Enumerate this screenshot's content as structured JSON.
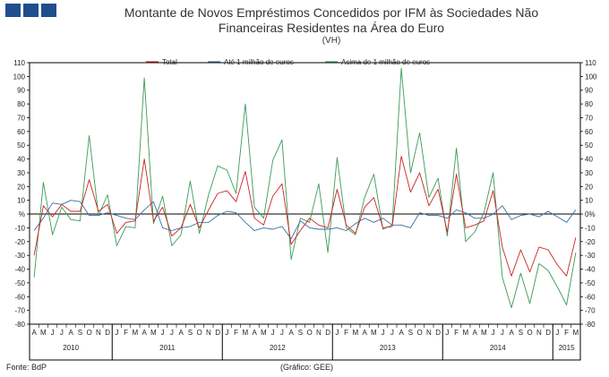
{
  "header": {
    "title_line1": "Montante de Novos Empréstimos Concedidos por IFM às Sociedades Não",
    "title_line2": "Financeiras Residentes na Área do Euro",
    "subtitle": "(VH)"
  },
  "footer": {
    "source": "Fonte: BdP",
    "credit": "(Gráfico: GEE)"
  },
  "chart_data": {
    "type": "line",
    "title": "Montante de Novos Empréstimos Concedidos por IFM às Sociedades Não Financeiras Residentes na Área do Euro",
    "subtitle": "(VH)",
    "ylabel": "%",
    "ylim": [
      -80,
      110
    ],
    "yticks": [
      110,
      100,
      90,
      80,
      70,
      60,
      50,
      40,
      30,
      20,
      10,
      0,
      -10,
      -20,
      -30,
      -40,
      -50,
      -60,
      -70,
      -80
    ],
    "ytick_labels": [
      "110",
      "100",
      "90",
      "80",
      "70",
      "60",
      "50",
      "40",
      "30",
      "20",
      "10",
      "0%",
      "-10",
      "-20",
      "-30",
      "-40",
      "-50",
      "-60",
      "-70",
      "-80"
    ],
    "zero_marker": "%",
    "legend_position": "top",
    "categories": [
      "A",
      "M",
      "J",
      "J",
      "A",
      "S",
      "O",
      "N",
      "D",
      "J",
      "F",
      "M",
      "A",
      "M",
      "J",
      "J",
      "A",
      "S",
      "O",
      "N",
      "D",
      "J",
      "F",
      "M",
      "A",
      "M",
      "J",
      "J",
      "A",
      "S",
      "O",
      "N",
      "D",
      "J",
      "F",
      "M",
      "A",
      "M",
      "J",
      "J",
      "A",
      "S",
      "O",
      "N",
      "D",
      "J",
      "F",
      "M",
      "A",
      "M",
      "J",
      "J",
      "A",
      "S",
      "O",
      "N",
      "D",
      "J",
      "F",
      "M"
    ],
    "years": [
      {
        "label": "2010",
        "start": 0,
        "end": 8
      },
      {
        "label": "2011",
        "start": 9,
        "end": 20
      },
      {
        "label": "2012",
        "start": 21,
        "end": 32
      },
      {
        "label": "2013",
        "start": 33,
        "end": 44
      },
      {
        "label": "2014",
        "start": 45,
        "end": 56
      },
      {
        "label": "2015",
        "start": 57,
        "end": 59
      }
    ],
    "series": [
      {
        "name": "Total",
        "color": "#cc2222",
        "values": [
          -30,
          6,
          -2,
          7,
          2,
          2,
          25,
          2,
          7,
          -14,
          -6,
          -5,
          40,
          -5,
          5,
          -16,
          -10,
          7,
          -10,
          3,
          15,
          17,
          9,
          31,
          -3,
          -8,
          13,
          22,
          -22,
          -12,
          -3,
          -8,
          -10,
          18,
          -8,
          -14,
          5,
          12,
          -10,
          -9,
          42,
          16,
          30,
          6,
          18,
          -13,
          29,
          -10,
          -8,
          -5,
          17,
          -24,
          -45,
          -26,
          -42,
          -24,
          -26,
          -37,
          -45,
          -17
        ]
      },
      {
        "name": "Até 1 milhão de euros",
        "color": "#3a6ea5",
        "values": [
          -12,
          -3,
          8,
          7,
          10,
          9,
          -1,
          -1,
          1,
          -1,
          -3,
          -4,
          3,
          9,
          -10,
          -12,
          -10,
          -9,
          -6,
          -6,
          -1,
          2,
          1,
          -6,
          -12,
          -10,
          -11,
          -9,
          -18,
          -5,
          -10,
          -11,
          -11,
          -10,
          -12,
          -7,
          -3,
          -6,
          -3,
          -8,
          -8,
          -10,
          1,
          -1,
          -1,
          -3,
          3,
          1,
          -3,
          -3,
          0,
          6,
          -4,
          -1,
          0,
          -2,
          2,
          -2,
          -6,
          3
        ]
      },
      {
        "name": "Acima de 1 milhão de euros",
        "color": "#3a9a5a",
        "values": [
          -46,
          23,
          -15,
          5,
          -4,
          -5,
          57,
          -1,
          14,
          -23,
          -9,
          -10,
          99,
          -7,
          13,
          -23,
          -15,
          24,
          -14,
          14,
          35,
          32,
          15,
          80,
          5,
          -3,
          39,
          54,
          -33,
          -3,
          -6,
          22,
          -28,
          41,
          -10,
          -15,
          12,
          29,
          -11,
          -8,
          106,
          30,
          59,
          12,
          26,
          -16,
          48,
          -20,
          -13,
          1,
          30,
          -46,
          -68,
          -43,
          -65,
          -36,
          -41,
          -53,
          -66,
          -28
        ]
      }
    ]
  }
}
